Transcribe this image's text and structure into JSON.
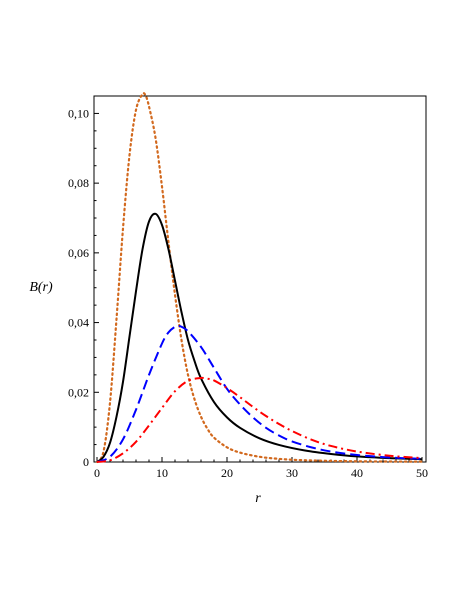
{
  "chart_data": {
    "type": "line",
    "xlabel": "r",
    "ylabel": "B(r)",
    "xlim": [
      0,
      50
    ],
    "ylim": [
      0,
      0.105
    ],
    "x_ticks": [
      0,
      10,
      20,
      30,
      40,
      50
    ],
    "x_tick_labels": [
      "0",
      "10",
      "20",
      "30",
      "40",
      "50"
    ],
    "y_ticks": [
      0,
      0.02,
      0.04,
      0.06,
      0.08,
      0.1
    ],
    "y_tick_labels": [
      "0",
      "0,02",
      "0,04",
      "0,06",
      "0,08",
      "0,10"
    ],
    "grid": false,
    "legend": "none",
    "series": [
      {
        "style": "dotted",
        "color": "#d2691e",
        "x": [
          0,
          1,
          2,
          3,
          4,
          5,
          6,
          7,
          7.5,
          8,
          9,
          10,
          11,
          12,
          13,
          14,
          15,
          16,
          17,
          18,
          20,
          22,
          25,
          28,
          32,
          40,
          50
        ],
        "y": [
          0,
          0.003,
          0.017,
          0.041,
          0.067,
          0.088,
          0.101,
          0.1055,
          0.105,
          0.102,
          0.093,
          0.079,
          0.063,
          0.048,
          0.035,
          0.025,
          0.018,
          0.013,
          0.0095,
          0.007,
          0.0042,
          0.0027,
          0.0015,
          0.0009,
          0.0005,
          0.0002,
          0.0001
        ]
      },
      {
        "style": "solid",
        "color": "#000000",
        "x": [
          0,
          1,
          2,
          3,
          4,
          5,
          6,
          7,
          8,
          9,
          10,
          11,
          12,
          13,
          14,
          15,
          16,
          18,
          20,
          22,
          25,
          28,
          32,
          36,
          40,
          45,
          50
        ],
        "y": [
          0,
          0.0015,
          0.0055,
          0.013,
          0.023,
          0.036,
          0.049,
          0.061,
          0.069,
          0.0712,
          0.068,
          0.061,
          0.052,
          0.043,
          0.035,
          0.029,
          0.024,
          0.0172,
          0.0128,
          0.0098,
          0.0068,
          0.0049,
          0.0033,
          0.0023,
          0.0016,
          0.0011,
          0.0008
        ]
      },
      {
        "style": "dashed",
        "color": "#0000ff",
        "x": [
          0,
          2,
          4,
          6,
          8,
          10,
          11,
          12,
          12.5,
          13,
          14,
          16,
          18,
          20,
          22,
          24,
          26,
          28,
          30,
          33,
          36,
          40,
          45,
          50
        ],
        "y": [
          0,
          0.0015,
          0.0065,
          0.015,
          0.025,
          0.034,
          0.0372,
          0.0388,
          0.039,
          0.0388,
          0.0375,
          0.033,
          0.027,
          0.021,
          0.0165,
          0.0128,
          0.0098,
          0.0076,
          0.0059,
          0.0042,
          0.003,
          0.002,
          0.0013,
          0.0009
        ]
      },
      {
        "style": "dashdot",
        "color": "#ff0000",
        "x": [
          0,
          2,
          4,
          6,
          8,
          10,
          12,
          14,
          16,
          17,
          18,
          20,
          22,
          24,
          26,
          28,
          30,
          33,
          36,
          40,
          45,
          50
        ],
        "y": [
          0,
          0.0005,
          0.0025,
          0.0058,
          0.0105,
          0.0155,
          0.0203,
          0.0233,
          0.0241,
          0.0239,
          0.0234,
          0.0212,
          0.0186,
          0.0158,
          0.0132,
          0.0109,
          0.0089,
          0.0064,
          0.0046,
          0.003,
          0.0018,
          0.0011
        ]
      }
    ]
  }
}
